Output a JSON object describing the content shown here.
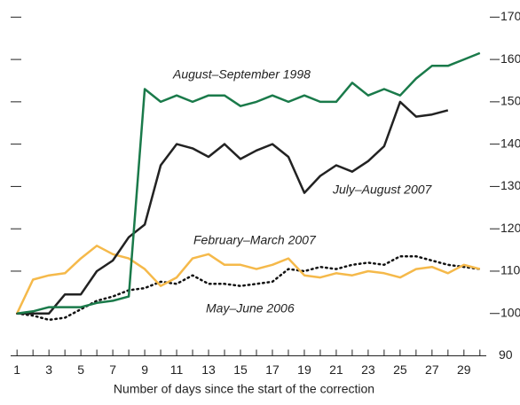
{
  "chart_data": {
    "type": "line",
    "x_label": "Number of days since the start of the correction",
    "x": [
      1,
      2,
      3,
      4,
      5,
      6,
      7,
      8,
      9,
      10,
      11,
      12,
      13,
      14,
      15,
      16,
      17,
      18,
      19,
      20,
      21,
      22,
      23,
      24,
      25,
      26,
      27,
      28,
      29,
      30
    ],
    "xlim": [
      0.6,
      30.4
    ],
    "xticks": [
      1,
      3,
      5,
      7,
      9,
      11,
      13,
      15,
      17,
      19,
      21,
      23,
      25,
      27,
      29
    ],
    "minor_xticks": [
      2,
      4,
      6,
      8,
      10,
      12,
      14,
      16,
      18,
      20,
      22,
      24,
      26,
      28,
      30
    ],
    "ylim": [
      90,
      173
    ],
    "yticks": [
      90,
      100,
      110,
      120,
      130,
      140,
      150,
      160,
      170
    ],
    "series": [
      {
        "name": "August–September 1998",
        "color": "#1a7a4a",
        "style": "solid",
        "values": [
          100,
          100.5,
          101.5,
          101.5,
          101.5,
          102.5,
          103,
          104,
          153,
          150,
          151.5,
          150,
          151.5,
          151.5,
          149,
          150,
          151.5,
          150,
          151.5,
          150,
          150,
          154.5,
          151.5,
          153,
          151.5,
          155.5,
          158.5,
          158.5,
          160,
          161.5
        ]
      },
      {
        "name": "July–August 2007",
        "color": "#222222",
        "style": "solid",
        "values": [
          100,
          100,
          100,
          104.5,
          104.5,
          110,
          112.5,
          118,
          121,
          135,
          140,
          139,
          137,
          140,
          136.5,
          138.5,
          140,
          137,
          128.5,
          132.5,
          135,
          133.5,
          136,
          139.5,
          150,
          146.5,
          147,
          148,
          null,
          null
        ]
      },
      {
        "name": "February–March 2007",
        "color": "#f5b94a",
        "style": "solid",
        "values": [
          100,
          108,
          109,
          109.5,
          113,
          116,
          114,
          113,
          110.5,
          106.5,
          108.5,
          113,
          114,
          111.5,
          111.5,
          110.5,
          111.5,
          113,
          109,
          108.5,
          109.5,
          109,
          110,
          109.5,
          108.5,
          110.5,
          111,
          109.5,
          111.5,
          110.5
        ]
      },
      {
        "name": "May–June 2006",
        "color": "#111111",
        "style": "dotted",
        "values": [
          100,
          99.5,
          98.5,
          99,
          101,
          103,
          104,
          105.5,
          106,
          107.5,
          107,
          109,
          107,
          107,
          106.5,
          107,
          107.5,
          110.5,
          110,
          111,
          110.5,
          111.5,
          112,
          111.5,
          113.5,
          113.5,
          112.5,
          111.5,
          111,
          110.5
        ]
      }
    ]
  }
}
